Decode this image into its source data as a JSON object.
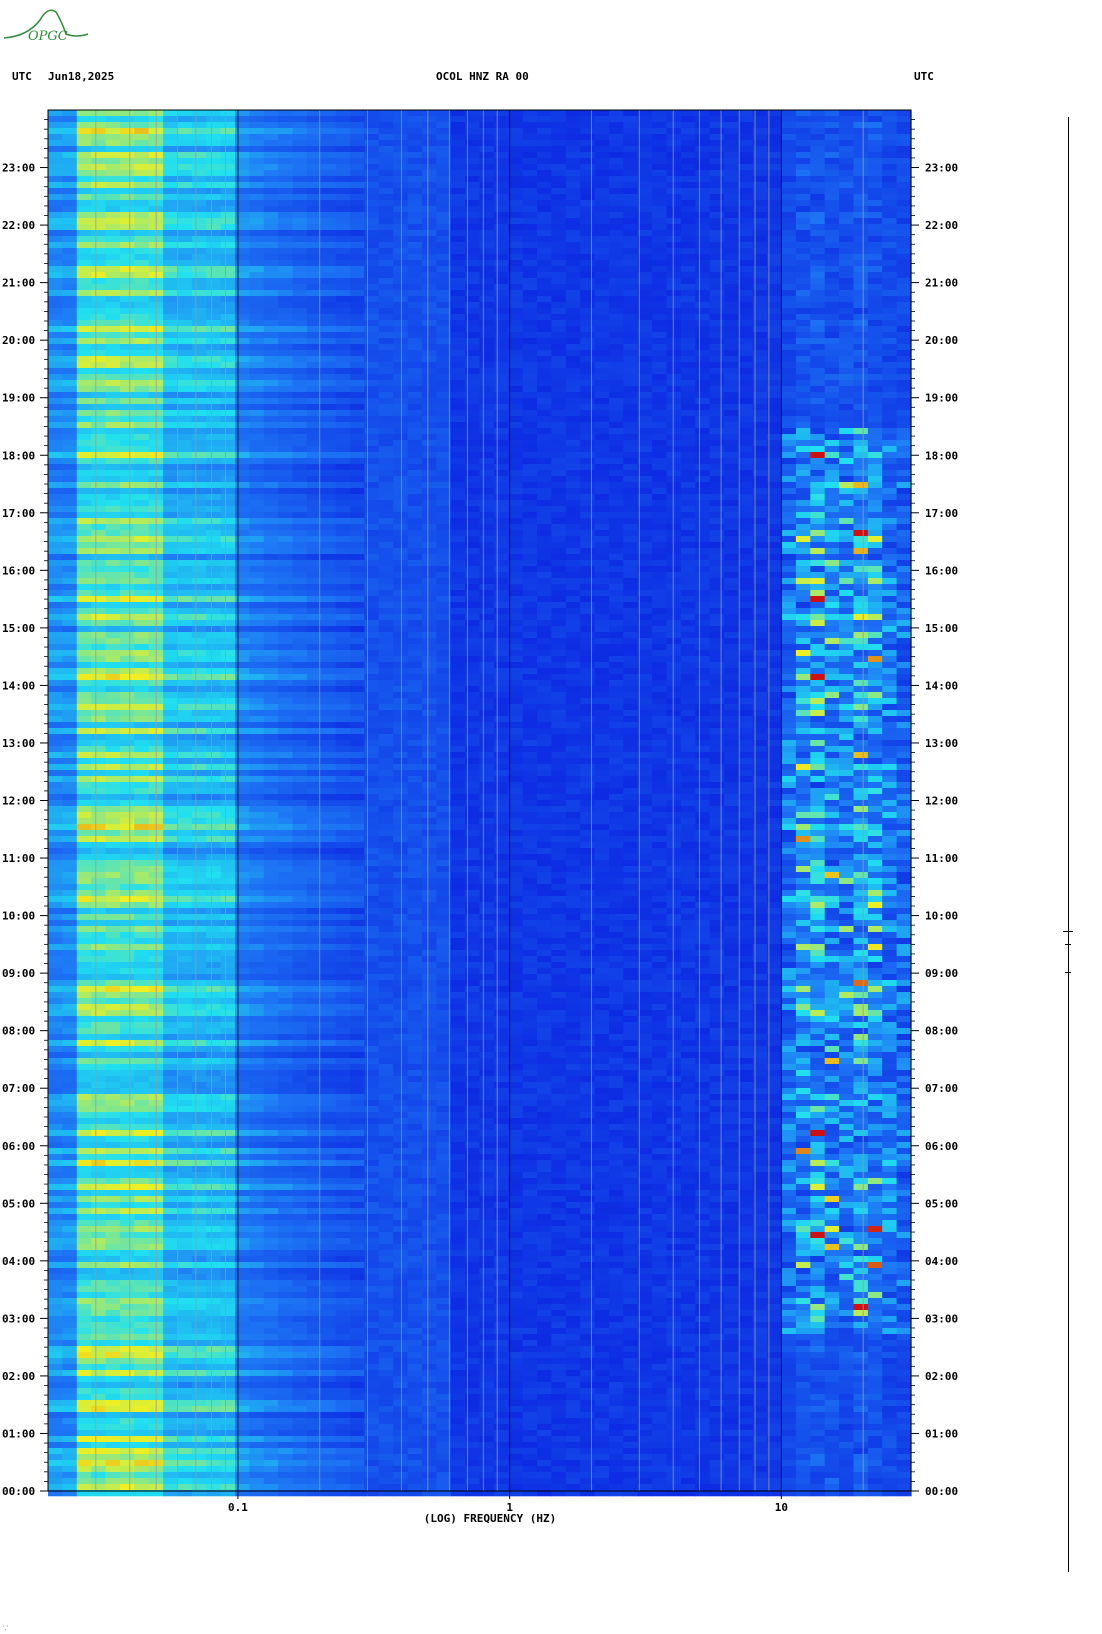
{
  "header": {
    "left_tz": "UTC",
    "date": "Jun18,2025",
    "station": "OCOL HNZ RA 00",
    "right_tz": "UTC"
  },
  "logo": {
    "text": "OPGC",
    "color": "#2e8b3a"
  },
  "colors": {
    "low": "#0a1fe0",
    "mid": "#20e0f0",
    "high": "#f0f020",
    "peak": "#d01010",
    "grid": "#9a9a9a"
  },
  "chart_data": {
    "type": "heatmap",
    "title": "OCOL HNZ RA 00",
    "xlabel": "(LOG) FREQUENCY (HZ)",
    "ylabel": "UTC",
    "x_scale": "log",
    "xlim": [
      0.02,
      30
    ],
    "x_tick_labels": [
      "0.1",
      "1",
      "10"
    ],
    "x_tick_values": [
      0.1,
      1,
      10
    ],
    "y_tick_labels": [
      "00:00",
      "01:00",
      "02:00",
      "03:00",
      "04:00",
      "05:00",
      "06:00",
      "07:00",
      "08:00",
      "09:00",
      "10:00",
      "11:00",
      "12:00",
      "13:00",
      "14:00",
      "15:00",
      "16:00",
      "17:00",
      "18:00",
      "19:00",
      "20:00",
      "21:00",
      "22:00",
      "23:00"
    ],
    "ylim_hours": [
      0,
      24
    ],
    "bands": [
      {
        "fmin": 0.02,
        "fmax": 0.05,
        "level": "high"
      },
      {
        "fmin": 0.05,
        "fmax": 0.1,
        "level": "mid"
      },
      {
        "fmin": 0.1,
        "fmax": 0.3,
        "level": "mid-low"
      },
      {
        "fmin": 0.3,
        "fmax": 10,
        "level": "low"
      },
      {
        "fmin": 10,
        "fmax": 30,
        "level": "bursts"
      }
    ],
    "hotspots_hz": [
      13.5,
      20
    ]
  },
  "footer": {
    "corner_mark": "⸪"
  }
}
